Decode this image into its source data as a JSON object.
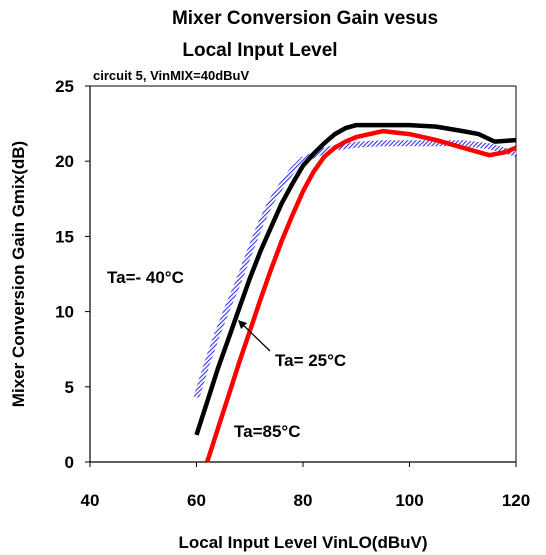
{
  "chart_data": {
    "type": "line",
    "title_line1": "Mixer Conversion Gain vesus",
    "title_line2": "Local Input Level",
    "subtitle": "circuit 5, VinMIX=40dBuV",
    "xlabel": "Local Input Level VinLO(dBuV)",
    "ylabel": "Mixer Conversion Gain Gmix(dB)",
    "xlim": [
      40,
      120
    ],
    "ylim": [
      0,
      25
    ],
    "x_ticks": [
      "40",
      "60",
      "80",
      "100",
      "120"
    ],
    "y_ticks": [
      "0",
      "5",
      "10",
      "15",
      "20",
      "25"
    ],
    "grid": "none",
    "series": [
      {
        "name": "Ta=- 40°C",
        "color": "#3333ee",
        "style": "hatched",
        "x": [
          60,
          62,
          64,
          66,
          68,
          70,
          72,
          74,
          76,
          78,
          80,
          82,
          84,
          86,
          88,
          90,
          95,
          100,
          105,
          110,
          115,
          120
        ],
        "y": [
          4.3,
          6.6,
          8.6,
          10.4,
          12.1,
          14.0,
          15.8,
          17.3,
          18.4,
          19.4,
          20.1,
          20.4,
          20.7,
          20.9,
          21.0,
          21.1,
          21.2,
          21.2,
          21.2,
          21.2,
          21.0,
          20.5
        ]
      },
      {
        "name": "Ta= 25°C",
        "color": "#000000",
        "style": "solid",
        "x": [
          60,
          62,
          64,
          66,
          68,
          70,
          72,
          74,
          76,
          78,
          80,
          82,
          84,
          86,
          88,
          90,
          95,
          100,
          105,
          110,
          113,
          116,
          120
        ],
        "y": [
          1.8,
          4.0,
          6.2,
          8.2,
          10.2,
          12.2,
          14.0,
          15.6,
          17.2,
          18.5,
          19.7,
          20.5,
          21.2,
          21.8,
          22.2,
          22.4,
          22.4,
          22.4,
          22.3,
          22.0,
          21.8,
          21.3,
          21.4
        ]
      },
      {
        "name": "Ta=85°C",
        "color": "#ff0000",
        "style": "solid",
        "x": [
          62,
          64,
          66,
          68,
          70,
          72,
          74,
          76,
          78,
          80,
          82,
          84,
          86,
          88,
          90,
          95,
          100,
          105,
          110,
          115,
          118,
          120
        ],
        "y": [
          0,
          2.2,
          4.4,
          6.6,
          8.7,
          10.8,
          12.8,
          14.7,
          16.4,
          18.0,
          19.3,
          20.3,
          20.9,
          21.3,
          21.6,
          22.0,
          21.8,
          21.4,
          20.9,
          20.4,
          20.6,
          20.9
        ]
      }
    ],
    "annotations": [
      {
        "text": "Ta=- 40°C",
        "series": "Ta=- 40°C"
      },
      {
        "text": "Ta=  25°C",
        "series": "Ta= 25°C"
      },
      {
        "text": "Ta=85°C",
        "series": "Ta=85°C"
      }
    ]
  }
}
